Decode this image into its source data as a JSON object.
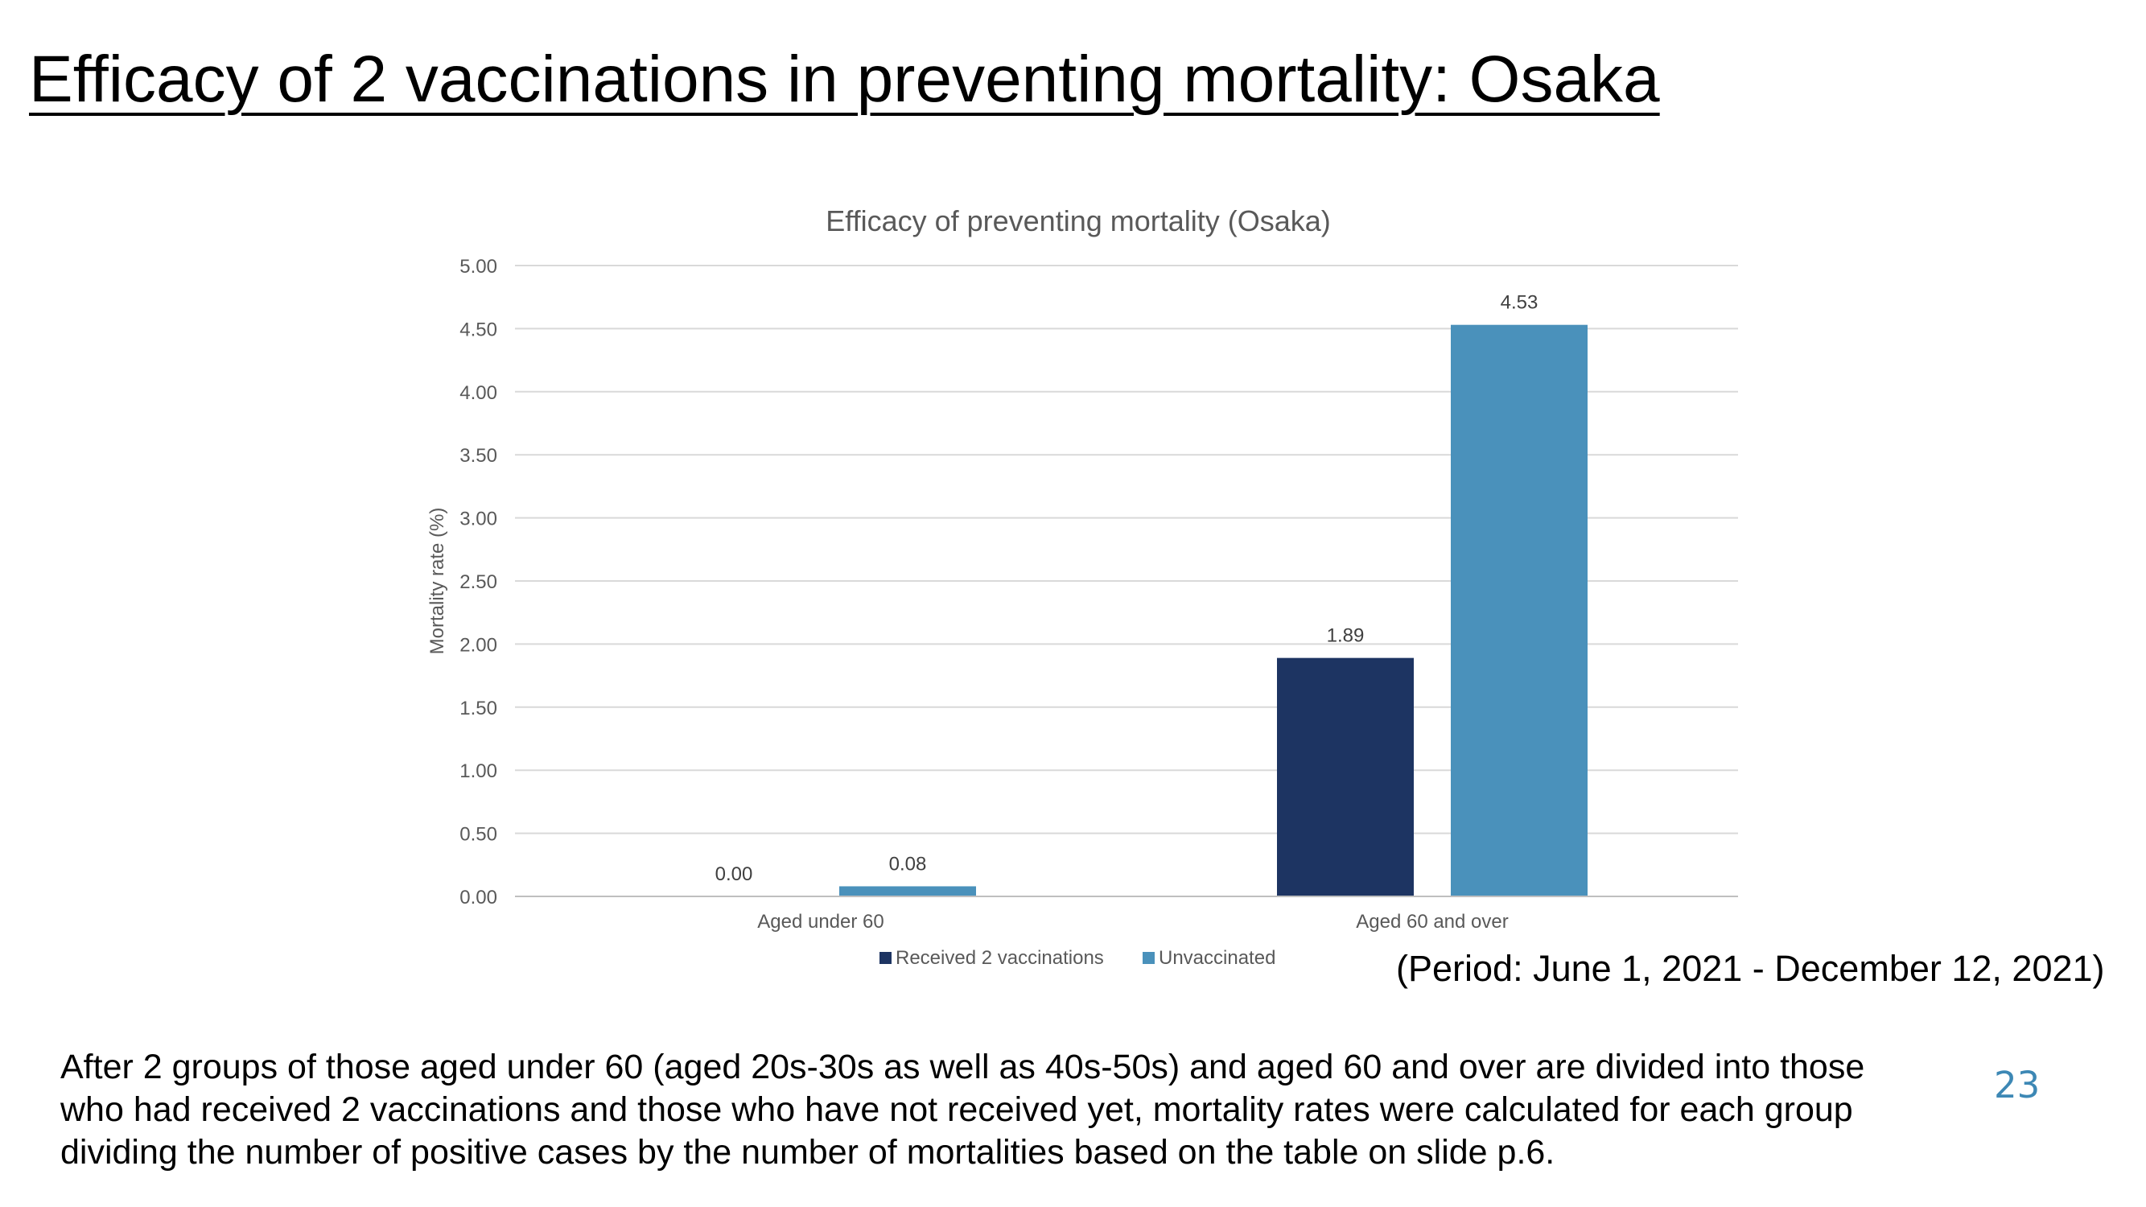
{
  "slide": {
    "title": "Efficacy of 2 vaccinations in preventing mortality: Osaka",
    "period": "(Period: June 1, 2021 - December 12, 2021)",
    "footnote_lines": [
      "After 2 groups of those aged under 60 (aged 20s-30s as well as 40s-50s) and aged 60 and over are divided into those",
      "who had received 2 vaccinations and those who have not received yet, mortality rates were calculated for each group",
      "dividing the number of positive cases by the number of mortalities based on the table on slide p.6."
    ],
    "page_number": "23"
  },
  "chart_data": {
    "type": "bar",
    "title": "Efficacy of preventing mortality (Osaka)",
    "xlabel": "",
    "ylabel": "Mortality rate (%)",
    "categories": [
      "Aged under 60",
      "Aged 60 and over"
    ],
    "series": [
      {
        "name": "Received 2 vaccinations",
        "values": [
          0.0,
          1.89
        ],
        "labels": [
          "0.00",
          "1.89"
        ],
        "color": "#1d3462"
      },
      {
        "name": "Unvaccinated",
        "values": [
          0.08,
          4.53
        ],
        "labels": [
          "0.08",
          "4.53"
        ],
        "color": "#4a91bb"
      }
    ],
    "ylim": [
      0,
      5
    ],
    "yticks": [
      "0.00",
      "0.50",
      "1.00",
      "1.50",
      "2.00",
      "2.50",
      "3.00",
      "3.50",
      "4.00",
      "4.50",
      "5.00"
    ],
    "grid": true,
    "legend": "bottom"
  }
}
